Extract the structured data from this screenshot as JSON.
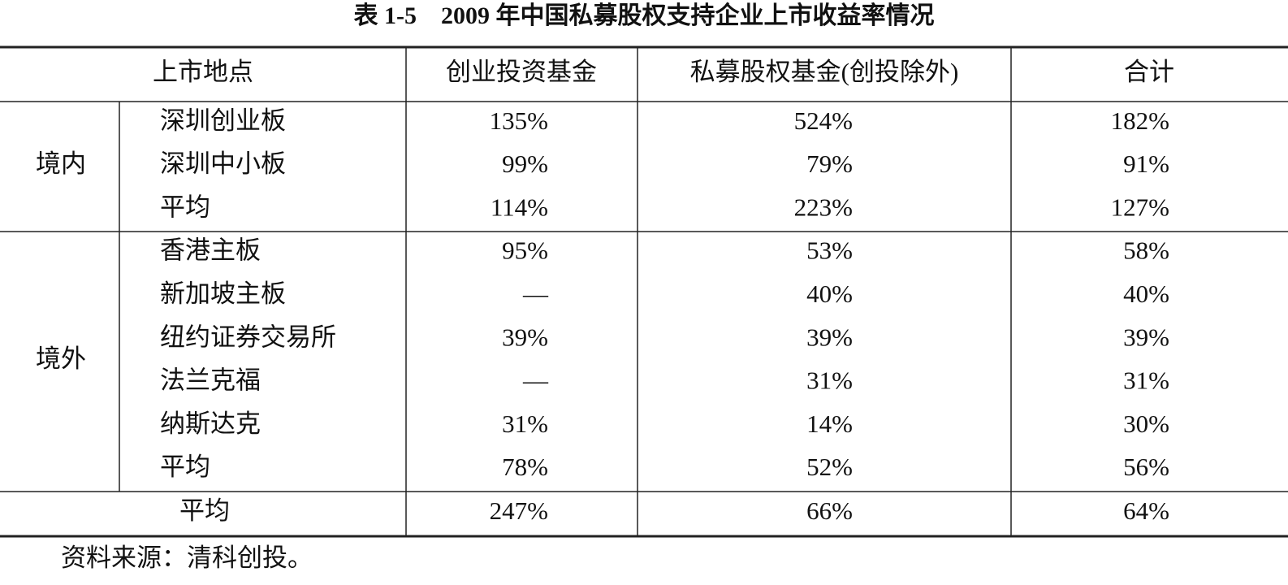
{
  "title": "表 1-5　2009 年中国私募股权支持企业上市收益率情况",
  "table": {
    "header": [
      "上市地点",
      "创业投资基金",
      "私募股权基金(创投除外)",
      "合计"
    ],
    "groups": [
      {
        "name": "境内",
        "rows": [
          {
            "label": "深圳创业板",
            "values": [
              "135%",
              "524%",
              "182%"
            ]
          },
          {
            "label": "深圳中小板",
            "values": [
              "99%",
              "79%",
              "91%"
            ]
          },
          {
            "label": "平均",
            "values": [
              "114%",
              "223%",
              "127%"
            ]
          }
        ]
      },
      {
        "name": "境外",
        "rows": [
          {
            "label": "香港主板",
            "values": [
              "95%",
              "53%",
              "58%"
            ]
          },
          {
            "label": "新加坡主板",
            "values": [
              "—",
              "40%",
              "40%"
            ]
          },
          {
            "label": "纽约证券交易所",
            "values": [
              "39%",
              "39%",
              "39%"
            ]
          },
          {
            "label": "法兰克福",
            "values": [
              "—",
              "31%",
              "31%"
            ]
          },
          {
            "label": "纳斯达克",
            "values": [
              "31%",
              "14%",
              "30%"
            ]
          },
          {
            "label": "平均",
            "values": [
              "78%",
              "52%",
              "56%"
            ]
          }
        ]
      }
    ],
    "total": {
      "label": "平均",
      "values": [
        "247%",
        "66%",
        "64%"
      ]
    }
  },
  "source": "资料来源：清科创投。"
}
